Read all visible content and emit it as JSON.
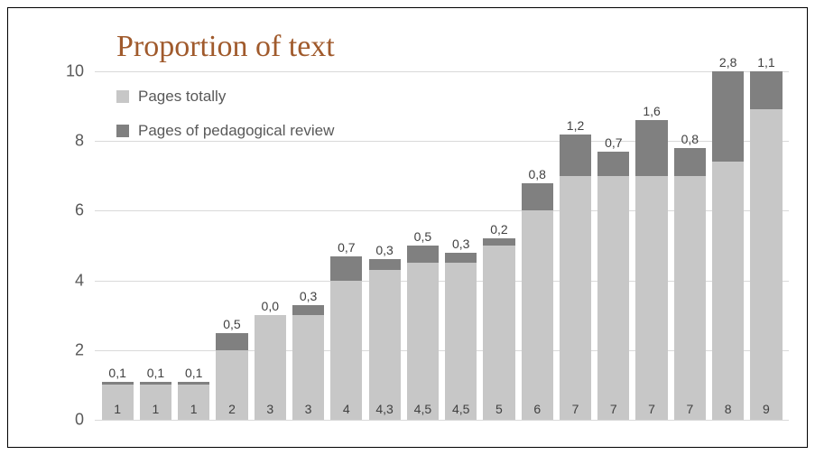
{
  "chart": {
    "type": "stacked-bar",
    "title": "Proportion of text",
    "title_fontsize": 34,
    "title_color": "#a05a2c",
    "title_font_family": "Georgia, 'Times New Roman', serif",
    "background_color": "#ffffff",
    "border_color": "#000000",
    "grid_color": "#d9d9d9",
    "label_color": "#595959",
    "data_label_color": "#404040",
    "label_fontsize": 18,
    "data_label_fontsize": 14,
    "ylim": [
      0,
      10
    ],
    "ytick_step": 2,
    "yticks": [
      0,
      2,
      4,
      6,
      8,
      10
    ],
    "legend": {
      "items": [
        {
          "label": "Pages totally",
          "color": "#c7c7c7"
        },
        {
          "label": "Pages of pedagogical review",
          "color": "#808080"
        }
      ]
    },
    "series_colors": {
      "base": "#c7c7c7",
      "top": "#808080"
    },
    "bar_width_ratio": 0.92,
    "decimal_separator": ",",
    "bars": [
      {
        "base": 1,
        "base_label": "1",
        "top": 0.1,
        "top_label": "0,1",
        "total": 1.1
      },
      {
        "base": 1,
        "base_label": "1",
        "top": 0.1,
        "top_label": "0,1",
        "total": 1.1
      },
      {
        "base": 1,
        "base_label": "1",
        "top": 0.1,
        "top_label": "0,1",
        "total": 1.1
      },
      {
        "base": 2,
        "base_label": "2",
        "top": 0.5,
        "top_label": "0,5",
        "total": 2.5
      },
      {
        "base": 3,
        "base_label": "3",
        "top": 0.0,
        "top_label": "0,0",
        "total": 3.0
      },
      {
        "base": 3,
        "base_label": "3",
        "top": 0.3,
        "top_label": "0,3",
        "total": 3.3
      },
      {
        "base": 4,
        "base_label": "4",
        "top": 0.7,
        "top_label": "0,7",
        "total": 4.7
      },
      {
        "base": 4.3,
        "base_label": "4,3",
        "top": 0.3,
        "top_label": "0,3",
        "total": 4.6
      },
      {
        "base": 4.5,
        "base_label": "4,5",
        "top": 0.5,
        "top_label": "0,5",
        "total": 5.0
      },
      {
        "base": 4.5,
        "base_label": "4,5",
        "top": 0.3,
        "top_label": "0,3",
        "total": 4.8
      },
      {
        "base": 5,
        "base_label": "5",
        "top": 0.2,
        "top_label": "0,2",
        "total": 5.2
      },
      {
        "base": 6,
        "base_label": "6",
        "top": 0.8,
        "top_label": "0,8",
        "total": 6.8
      },
      {
        "base": 7,
        "base_label": "7",
        "top": 1.2,
        "top_label": "1,2",
        "total": 8.2
      },
      {
        "base": 7,
        "base_label": "7",
        "top": 0.7,
        "top_label": "0,7",
        "total": 7.7
      },
      {
        "base": 7,
        "base_label": "7",
        "top": 1.6,
        "top_label": "1,6",
        "total": 8.6
      },
      {
        "base": 7,
        "base_label": "7",
        "top": 0.8,
        "top_label": "0,8",
        "total": 7.8
      },
      {
        "base": 8,
        "base_label": "8",
        "top": 2.8,
        "top_label": "2,8",
        "total": 10.8
      },
      {
        "base": 9,
        "base_label": "9",
        "top": 1.1,
        "top_label": "1,1",
        "total": 10.1
      }
    ]
  }
}
